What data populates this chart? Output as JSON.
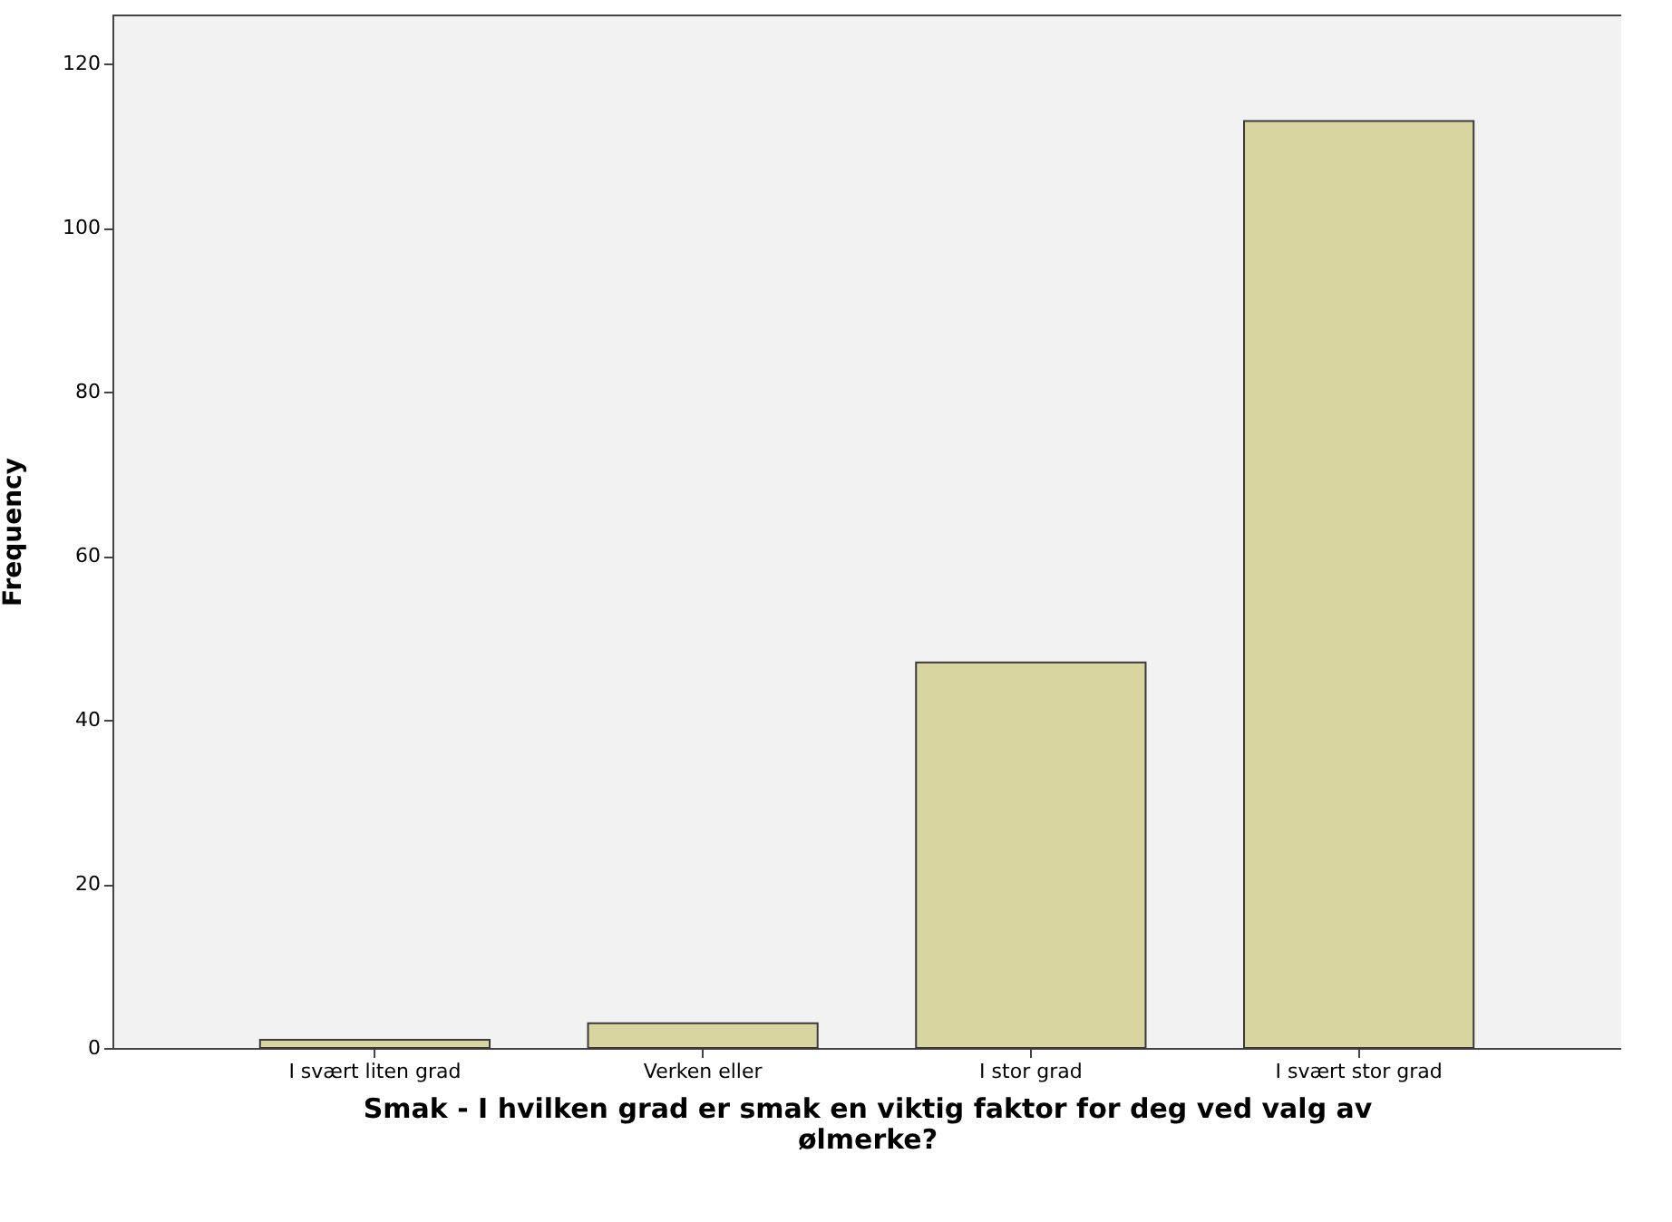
{
  "chart_data": {
    "type": "bar",
    "xlabel": "Smak - I hvilken grad er smak en viktig faktor for deg ved valg av ølmerke?",
    "ylabel": "Frequency",
    "categories": [
      "I svært liten grad",
      "Verken eller",
      "I stor grad",
      "I svært stor grad"
    ],
    "values": [
      1,
      3,
      47,
      113
    ],
    "color": "#d8d5a0",
    "ylim": [
      0,
      126
    ],
    "yticks": [
      0,
      20,
      40,
      60,
      80,
      100,
      120
    ],
    "grid": false
  }
}
